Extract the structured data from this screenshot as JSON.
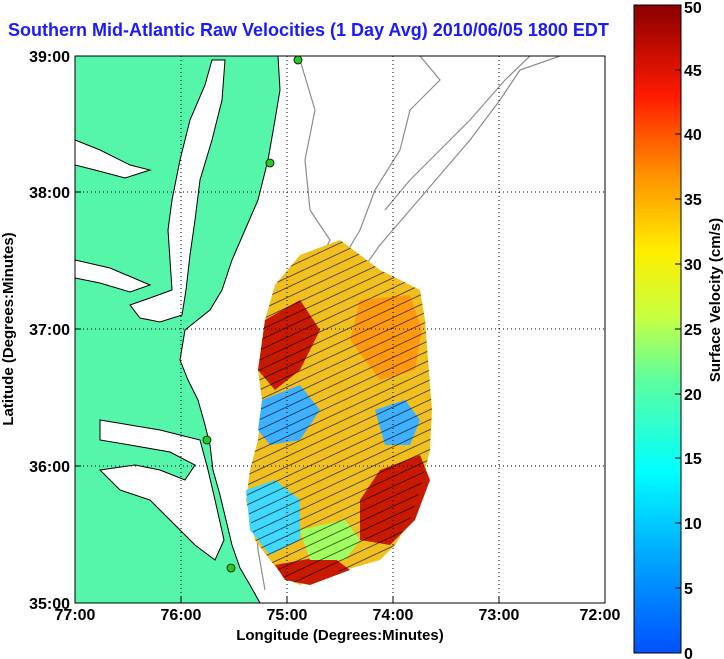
{
  "title": "Southern Mid-Atlantic Raw Velocities (1 Day Avg) 2010/06/05 1800 EDT",
  "map": {
    "x_axis_label": "Longitude (Degrees:Minutes)",
    "y_axis_label": "Latitude (Degrees:Minutes)",
    "x_ticks": [
      "77:00",
      "76:00",
      "75:00",
      "74:00",
      "73:00",
      "72:00"
    ],
    "y_ticks": [
      "39:00",
      "38:00",
      "37:00",
      "36:00",
      "35:00"
    ],
    "lon_range": [
      -77,
      -72
    ],
    "lat_range": [
      35,
      39
    ],
    "grid": true,
    "land_color": "#55f5aa",
    "contour_color": "#8c8c8c"
  },
  "colorbar": {
    "label": "Surface Velocity (cm/s)",
    "ticks": [
      "0",
      "5",
      "10",
      "15",
      "20",
      "25",
      "30",
      "35",
      "40",
      "45",
      "50"
    ],
    "min": 0,
    "max": 50,
    "colormap": "jet"
  }
}
